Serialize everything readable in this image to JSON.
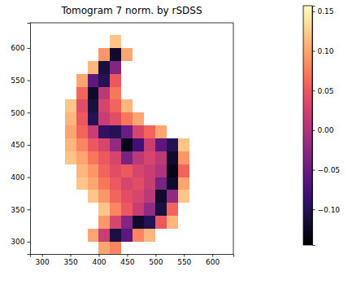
{
  "chart_data": {
    "type": "heatmap",
    "title": "Tomogram 7 norm. by rSDSS",
    "x": [
      290,
      310,
      330,
      350,
      370,
      390,
      410,
      430,
      450,
      470,
      490,
      510,
      530,
      550,
      570,
      590,
      610,
      630
    ],
    "y": [
      290,
      310,
      330,
      350,
      370,
      390,
      410,
      430,
      450,
      470,
      490,
      510,
      530,
      550,
      570,
      590,
      610,
      630
    ],
    "values": [
      [
        null,
        null,
        null,
        null,
        null,
        null,
        0.1,
        0.08,
        null,
        null,
        null,
        null,
        null,
        null,
        null,
        null,
        null,
        null
      ],
      [
        null,
        null,
        null,
        null,
        null,
        0.1,
        0.02,
        -0.11,
        -0.06,
        0.08,
        0.11,
        null,
        null,
        null,
        null,
        null,
        null,
        null
      ],
      [
        null,
        null,
        null,
        null,
        null,
        null,
        0.09,
        0.03,
        -0.03,
        -0.12,
        -0.1,
        0.05,
        0.11,
        null,
        null,
        null,
        null,
        null
      ],
      [
        null,
        null,
        null,
        null,
        null,
        null,
        0.12,
        0.08,
        0.05,
        0.02,
        -0.02,
        -0.11,
        0.06,
        null,
        null,
        null,
        null,
        null
      ],
      [
        null,
        null,
        null,
        null,
        null,
        0.12,
        0.09,
        0.06,
        0.04,
        0.03,
        0.01,
        -0.12,
        -0.02,
        0.12,
        null,
        null,
        null,
        null
      ],
      [
        null,
        null,
        null,
        null,
        0.12,
        0.1,
        0.07,
        0.05,
        0.03,
        0.04,
        0.02,
        -0.04,
        -0.12,
        0.1,
        null,
        null,
        null,
        null
      ],
      [
        null,
        null,
        null,
        null,
        0.11,
        0.09,
        0.06,
        0.04,
        0.05,
        0.03,
        0.02,
        0.0,
        -0.13,
        0.06,
        null,
        null,
        null,
        null
      ],
      [
        null,
        null,
        null,
        0.12,
        0.1,
        0.07,
        0.05,
        0.03,
        -0.04,
        0.01,
        0.03,
        0.01,
        -0.12,
        0.09,
        null,
        null,
        null,
        null
      ],
      [
        null,
        null,
        null,
        0.11,
        0.08,
        0.05,
        0.03,
        -0.02,
        -0.13,
        -0.08,
        0.02,
        -0.06,
        -0.1,
        0.12,
        null,
        null,
        null,
        null
      ],
      [
        null,
        null,
        null,
        0.1,
        0.06,
        0.02,
        -0.09,
        -0.1,
        -0.05,
        0.03,
        0.06,
        0.1,
        null,
        null,
        null,
        null,
        null,
        null
      ],
      [
        null,
        null,
        null,
        0.11,
        0.05,
        -0.1,
        0.02,
        0.04,
        0.07,
        0.1,
        null,
        null,
        null,
        null,
        null,
        null,
        null,
        null
      ],
      [
        null,
        null,
        null,
        0.12,
        0.04,
        -0.11,
        0.03,
        0.06,
        0.11,
        null,
        null,
        null,
        null,
        null,
        null,
        null,
        null,
        null
      ],
      [
        null,
        null,
        null,
        null,
        0.06,
        -0.12,
        0.01,
        0.07,
        null,
        null,
        null,
        null,
        null,
        null,
        null,
        null,
        null,
        null
      ],
      [
        null,
        null,
        null,
        null,
        0.1,
        -0.06,
        -0.1,
        0.05,
        null,
        null,
        null,
        null,
        null,
        null,
        null,
        null,
        null,
        null
      ],
      [
        null,
        null,
        null,
        null,
        null,
        0.11,
        -0.11,
        -0.03,
        null,
        null,
        null,
        null,
        null,
        null,
        null,
        null,
        null,
        null
      ],
      [
        null,
        null,
        null,
        null,
        null,
        null,
        0.09,
        -0.12,
        0.1,
        null,
        null,
        null,
        null,
        null,
        null,
        null,
        null,
        null
      ],
      [
        null,
        null,
        null,
        null,
        null,
        null,
        null,
        0.12,
        null,
        null,
        null,
        null,
        null,
        null,
        null,
        null,
        null,
        null
      ],
      [
        null,
        null,
        null,
        null,
        null,
        null,
        null,
        null,
        null,
        null,
        null,
        null,
        null,
        null,
        null,
        null,
        null,
        null
      ]
    ],
    "xlim": [
      279,
      637
    ],
    "ylim": [
      281,
      639
    ],
    "xticks": [
      300,
      350,
      400,
      450,
      500,
      550,
      600
    ],
    "yticks": [
      300,
      350,
      400,
      450,
      500,
      550,
      600
    ],
    "colorbar_range": [
      -0.145,
      0.157
    ],
    "colorbar_ticks": [
      {
        "value": -0.1,
        "label": "−0.10"
      },
      {
        "value": -0.05,
        "label": "−0.05"
      },
      {
        "value": 0.0,
        "label": "0.00"
      },
      {
        "value": 0.05,
        "label": "0.05"
      },
      {
        "value": 0.1,
        "label": "0.10"
      },
      {
        "value": 0.15,
        "label": "0.15"
      }
    ]
  }
}
